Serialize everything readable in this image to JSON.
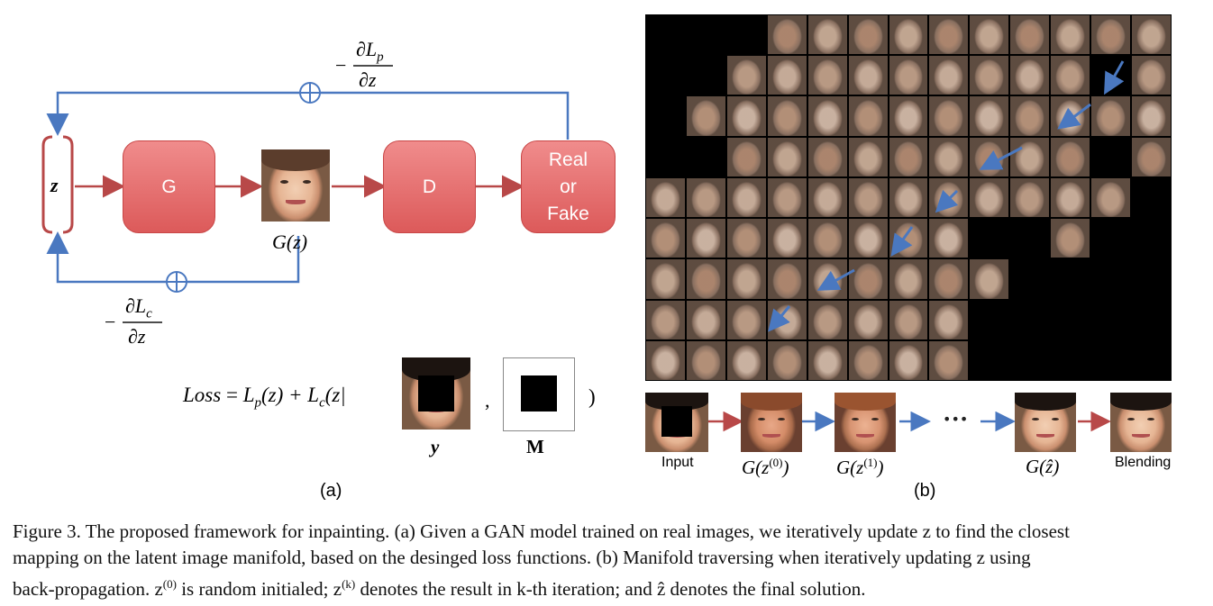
{
  "panel_a": {
    "z_label": "z",
    "g_label": "G",
    "d_label": "D",
    "rf_label": [
      "Real",
      "or",
      "Fake"
    ],
    "gz_label": "G(z)",
    "grad_top": {
      "minus": "−",
      "num": "∂L",
      "num_sub": "p",
      "den": "∂z"
    },
    "grad_bottom": {
      "minus": "−",
      "num": "∂L",
      "num_sub": "c",
      "den": "∂z"
    },
    "loss_text": "Loss = L",
    "loss_parts": [
      "Loss",
      "=",
      "L",
      "p",
      "(z) + L",
      "c",
      "(z|",
      ",",
      ")"
    ],
    "y_label": "y",
    "m_label": "M",
    "sub_label": "(a)"
  },
  "panel_b": {
    "input_label": "Input",
    "g0_label": "G(z",
    "g0_sup": "(0)",
    "g1_label": "G(z",
    "g1_sup": "(1)",
    "ghat_label": "G(ẑ)",
    "blend_label": "Blending",
    "dots": "•••",
    "sub_label": "(b)"
  },
  "caption": {
    "line1": "Figure 3. The proposed framework for inpainting. (a) Given a GAN model trained on real images, we iteratively update z to find the closest",
    "line2": "mapping on the latent image manifold, based on the desinged loss functions. (b) Manifold traversing when iteratively updating z using",
    "line3a": "back-propagation. z",
    "line3_sup0": "(0)",
    "line3b": " is random initialed; z",
    "line3_supk": "(k)",
    "line3c": " denotes the result in k-th iteration; and ẑ denotes the final solution."
  },
  "colors": {
    "blue_arrow": "#4a78c0",
    "red_arrow": "#b84848",
    "node_fill": "#e86a6a"
  }
}
